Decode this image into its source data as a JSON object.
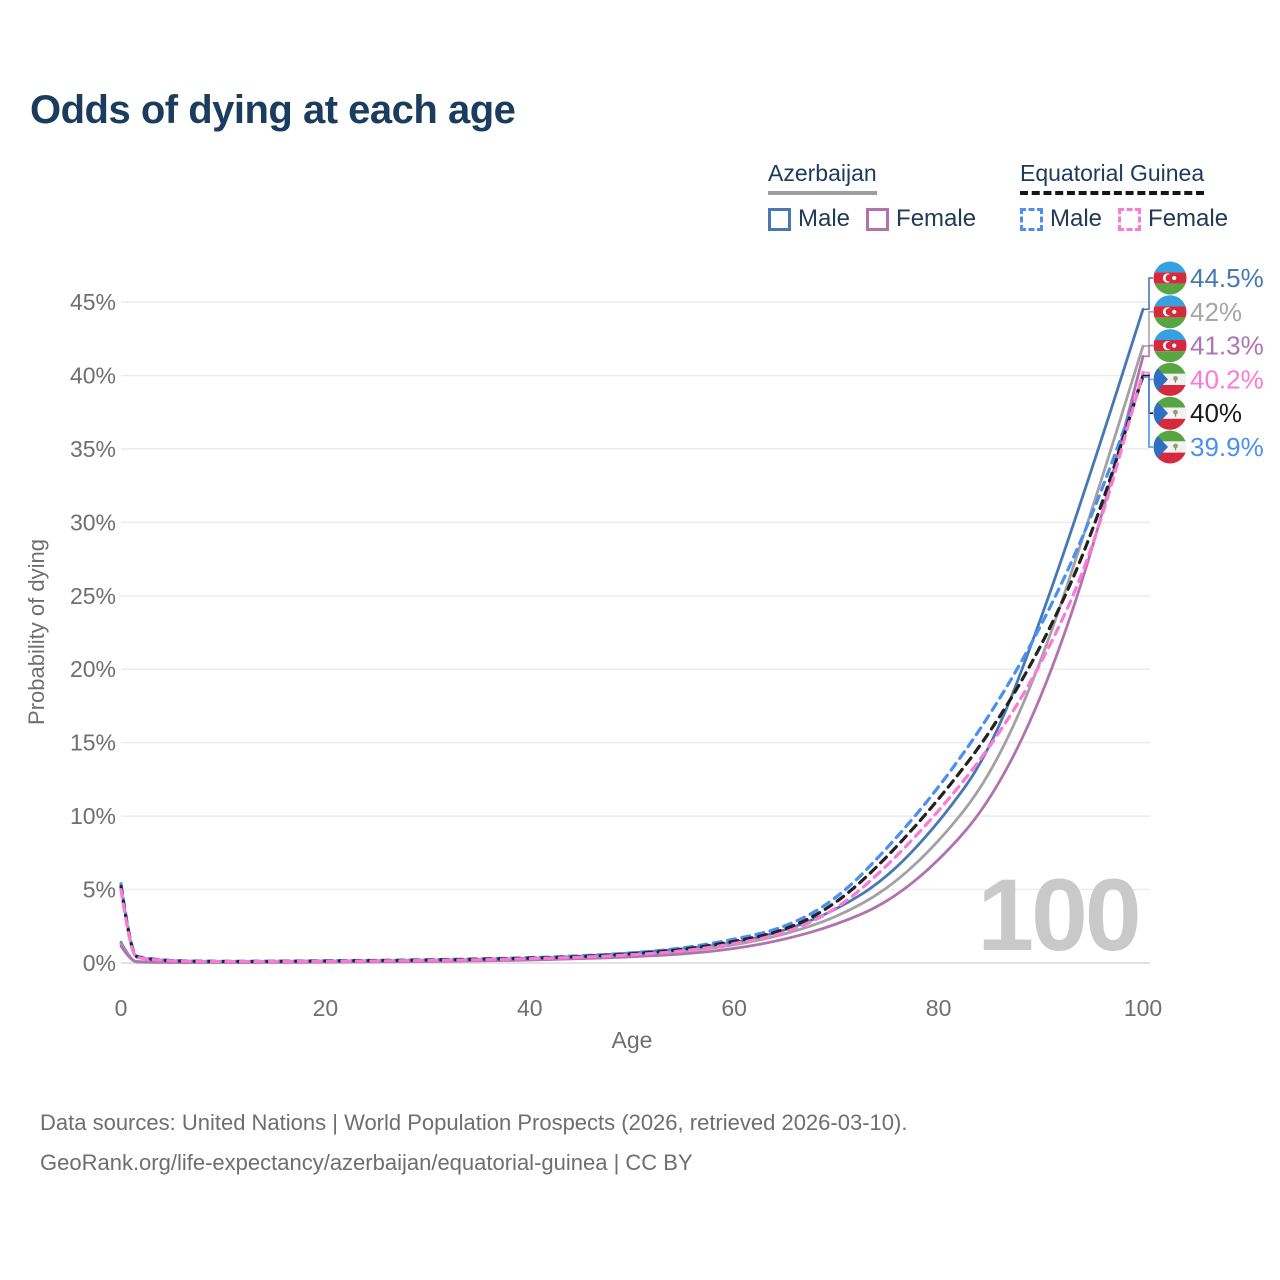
{
  "title": "Odds of dying at each age",
  "legend": {
    "groups": [
      {
        "country": "Azerbaijan",
        "line_style": "solid",
        "underline_color": "#9e9e9e",
        "items": [
          {
            "label": "Male",
            "color": "#4878b4"
          },
          {
            "label": "Female",
            "color": "#b172ae"
          }
        ]
      },
      {
        "country": "Equatorial Guinea",
        "line_style": "dashed",
        "underline_color": "#161616",
        "items": [
          {
            "label": "Male",
            "color": "#4b8ff2"
          },
          {
            "label": "Female",
            "color": "#fb79d7"
          }
        ]
      }
    ]
  },
  "watermark": "100",
  "footer": {
    "line1": "Data sources: United Nations | World Population Prospects (2026, retrieved 2026-03-10).",
    "line2": "GeoRank.org/life-expectancy/azerbaijan/equatorial-guinea | CC BY"
  },
  "chart_data": {
    "type": "line",
    "title": "Odds of dying at each age",
    "xlabel": "Age",
    "ylabel": "Probability of dying",
    "xlim": [
      0,
      100
    ],
    "ylim_percent": [
      0,
      47
    ],
    "grid": true,
    "legend_position": "top-right",
    "x_ticks": [
      0,
      20,
      40,
      60,
      80,
      100
    ],
    "y_ticks_percent": [
      0,
      5,
      10,
      15,
      20,
      25,
      30,
      35,
      40,
      45
    ],
    "y_tick_suffix": "%",
    "ages": [
      0,
      1,
      2,
      5,
      10,
      15,
      20,
      25,
      30,
      35,
      40,
      45,
      50,
      55,
      60,
      65,
      70,
      75,
      80,
      85,
      90,
      95,
      100
    ],
    "series": [
      {
        "name": "Azerbaijan Male",
        "country": "Azerbaijan",
        "sex": "Male",
        "color": "#4878b4",
        "dashed": false,
        "values_percent": [
          1.4,
          0.12,
          0.08,
          0.05,
          0.045,
          0.06,
          0.09,
          0.12,
          0.15,
          0.21,
          0.3,
          0.45,
          0.68,
          0.95,
          1.35,
          2.2,
          3.6,
          5.8,
          9.5,
          14.3,
          23.3,
          33.6,
          44.5
        ]
      },
      {
        "name": "Azerbaijan Both sexes",
        "country": "Azerbaijan",
        "sex": "Both",
        "color": "#a2a2a2",
        "dashed": false,
        "values_percent": [
          1.3,
          0.11,
          0.07,
          0.045,
          0.04,
          0.05,
          0.07,
          0.1,
          0.13,
          0.18,
          0.25,
          0.37,
          0.55,
          0.78,
          1.2,
          1.95,
          3.1,
          5.0,
          8.2,
          12.6,
          20.3,
          30.8,
          42.0
        ]
      },
      {
        "name": "Azerbaijan Female",
        "country": "Azerbaijan",
        "sex": "Female",
        "color": "#b172ae",
        "dashed": false,
        "values_percent": [
          1.15,
          0.1,
          0.06,
          0.04,
          0.035,
          0.045,
          0.055,
          0.075,
          0.1,
          0.14,
          0.2,
          0.29,
          0.42,
          0.6,
          0.95,
          1.6,
          2.6,
          4.1,
          6.9,
          10.9,
          17.8,
          27.8,
          41.3
        ]
      },
      {
        "name": "Equatorial Guinea Male",
        "country": "Equatorial Guinea",
        "sex": "Male",
        "color": "#4b8ff2",
        "dashed": true,
        "values_percent": [
          5.4,
          0.6,
          0.35,
          0.14,
          0.11,
          0.12,
          0.15,
          0.18,
          0.22,
          0.28,
          0.36,
          0.48,
          0.68,
          1.0,
          1.6,
          2.4,
          4.3,
          7.8,
          11.9,
          16.8,
          22.8,
          30.3,
          39.9
        ]
      },
      {
        "name": "Equatorial Guinea Both sexes",
        "country": "Equatorial Guinea",
        "sex": "Both",
        "color": "#222222",
        "dashed": true,
        "values_percent": [
          5.2,
          0.55,
          0.32,
          0.13,
          0.1,
          0.11,
          0.14,
          0.16,
          0.2,
          0.25,
          0.32,
          0.43,
          0.61,
          0.9,
          1.45,
          2.2,
          4.0,
          7.2,
          11.1,
          15.6,
          21.4,
          29.0,
          40.0
        ]
      },
      {
        "name": "Equatorial Guinea Female",
        "country": "Equatorial Guinea",
        "sex": "Female",
        "color": "#fb79d7",
        "dashed": true,
        "values_percent": [
          5.0,
          0.5,
          0.3,
          0.12,
          0.09,
          0.1,
          0.12,
          0.14,
          0.17,
          0.22,
          0.29,
          0.39,
          0.55,
          0.8,
          1.3,
          2.0,
          3.6,
          6.6,
          10.3,
          14.6,
          20.2,
          27.8,
          40.2
        ]
      }
    ],
    "end_labels": [
      {
        "flag": "az",
        "text": "44.5%",
        "value_percent": 44.5,
        "color": "#4878b4",
        "series": "Azerbaijan Male"
      },
      {
        "flag": "az",
        "text": "42%",
        "value_percent": 42.0,
        "color": "#a6a6a6",
        "series": "Azerbaijan Both sexes"
      },
      {
        "flag": "az",
        "text": "41.3%",
        "value_percent": 41.3,
        "color": "#ad74b5",
        "series": "Azerbaijan Female"
      },
      {
        "flag": "gq",
        "text": "40.2%",
        "value_percent": 40.2,
        "color": "#fb79d7",
        "series": "Equatorial Guinea Female"
      },
      {
        "flag": "gq",
        "text": "40%",
        "value_percent": 40.0,
        "color": "#1a1a1a",
        "series": "Equatorial Guinea Both sexes"
      },
      {
        "flag": "gq",
        "text": "39.9%",
        "value_percent": 39.9,
        "color": "#4b8ff2",
        "series": "Equatorial Guinea Male"
      }
    ],
    "annotations": {
      "hover_age_watermark": "100"
    }
  }
}
